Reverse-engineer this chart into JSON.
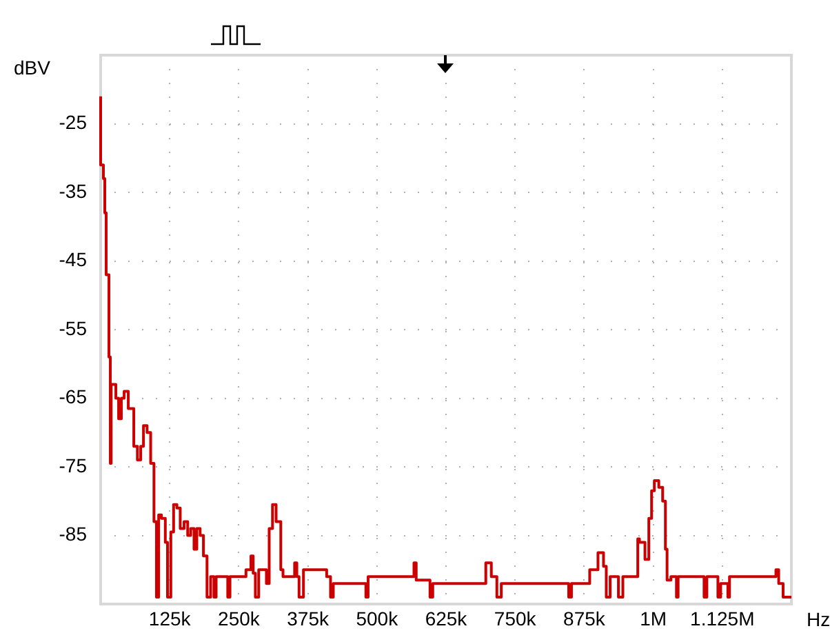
{
  "chart_data": {
    "type": "step",
    "xlabel": "Hz",
    "ylabel": "dBV",
    "x": [
      0,
      5000,
      7500,
      10000,
      15000,
      17500,
      19000,
      21000,
      27500,
      32500,
      37500,
      42500,
      50000,
      60000,
      66500,
      72500,
      77500,
      84000,
      90500,
      96500,
      101000,
      105000,
      110000,
      117000,
      121000,
      127000,
      132000,
      138000,
      144000,
      151000,
      157500,
      163000,
      169000,
      174000,
      180000,
      186000,
      192500,
      199000,
      205000,
      209000,
      230000,
      234000,
      251000,
      263000,
      272000,
      276000,
      280000,
      286000,
      294000,
      300000,
      305000,
      311000,
      317500,
      326000,
      330000,
      336000,
      351000,
      355000,
      359000,
      367000,
      409000,
      416000,
      421000,
      480000,
      484000,
      567000,
      571000,
      577000,
      596000,
      601000,
      697000,
      707000,
      717000,
      725000,
      847000,
      852000,
      885000,
      900000,
      910000,
      915000,
      922000,
      937000,
      945000,
      972000,
      975000,
      985000,
      992000,
      997000,
      1002000,
      1010000,
      1017000,
      1022000,
      1025000,
      1032000,
      1042000,
      1045000,
      1092000,
      1097000,
      1117000,
      1122000,
      1135000,
      1138000,
      1222000,
      1227000,
      1235000,
      1242000,
      1250000
    ],
    "series": [
      {
        "color": "#cc0000",
        "values": [
          -21,
          -31,
          -33,
          -38,
          -47,
          -59,
          -74.5,
          -63,
          -63,
          -65,
          -68,
          -65,
          -64,
          -66.5,
          -72,
          -74,
          -72,
          -69,
          -70,
          -74.5,
          -83,
          -94,
          -82,
          -82.5,
          -86,
          -94,
          -84.5,
          -80.5,
          -81,
          -84,
          -83,
          -85,
          -84,
          -87,
          -84,
          -85,
          -88,
          -94,
          -91,
          -94,
          -91,
          -94,
          -91,
          -91,
          -90,
          -88,
          -90.5,
          -94,
          -90,
          -90,
          -92,
          -84,
          -80.5,
          -83,
          -90,
          -91,
          -91,
          -89,
          -91,
          -94,
          -90,
          -91,
          -94,
          -92,
          -94,
          -91,
          -89,
          -91.5,
          -91.5,
          -94,
          -92,
          -89,
          -91,
          -94,
          -92,
          -94,
          -92,
          -90,
          -87.5,
          -89.5,
          -94,
          -91,
          -94,
          -91,
          -85.5,
          -86,
          -88.5,
          -82.5,
          -78.5,
          -77,
          -78,
          -80,
          -87,
          -91.5,
          -91,
          -94,
          -91,
          -94,
          -91,
          -94,
          -92,
          -94,
          -91,
          -90,
          -92,
          -94,
          -94
        ]
      }
    ],
    "xlim": [
      0,
      1250000
    ],
    "xticks": [
      {
        "value": 125000,
        "label": "125k"
      },
      {
        "value": 250000,
        "label": "250k"
      },
      {
        "value": 375000,
        "label": "375k"
      },
      {
        "value": 500000,
        "label": "500k"
      },
      {
        "value": 625000,
        "label": "625k"
      },
      {
        "value": 750000,
        "label": "750k"
      },
      {
        "value": 875000,
        "label": "875k"
      },
      {
        "value": 1000000,
        "label": "1M"
      },
      {
        "value": 1125000,
        "label": "1.125M"
      }
    ],
    "ylim": [
      -95,
      -15
    ],
    "yticks": [
      -25,
      -35,
      -45,
      -55,
      -65,
      -75,
      -85
    ],
    "grid": true,
    "marker": "none",
    "line_style": "solid"
  }
}
